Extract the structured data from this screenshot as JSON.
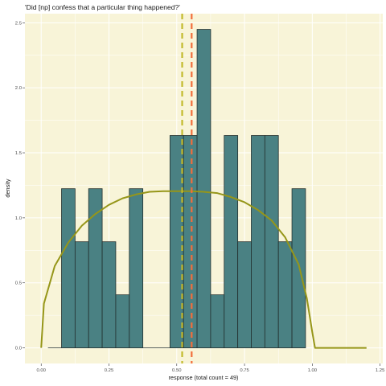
{
  "chart_data": {
    "type": "bar",
    "title": "'Did [np] confess that a particular thing happened?'",
    "xlabel": "response (total count = 49)",
    "ylabel": "density",
    "xlim": [
      -0.06,
      1.26
    ],
    "ylim": [
      -0.12,
      2.57
    ],
    "xticks": [
      0.0,
      0.25,
      0.5,
      0.75,
      1.0,
      1.25
    ],
    "xtick_labels": [
      "0.00",
      "0.25",
      "0.50",
      "0.75",
      "1.00",
      "1.25"
    ],
    "yticks": [
      0.0,
      0.5,
      1.0,
      1.5,
      2.0,
      2.5
    ],
    "ytick_labels": [
      "0.0",
      "0.5",
      "1.0",
      "1.5",
      "2.0",
      "2.5"
    ],
    "grid": true,
    "histogram": {
      "bin_width": 0.05,
      "bins": [
        {
          "x0": 0.075,
          "density": 1.224
        },
        {
          "x0": 0.125,
          "density": 0.816
        },
        {
          "x0": 0.175,
          "density": 1.224
        },
        {
          "x0": 0.225,
          "density": 0.816
        },
        {
          "x0": 0.275,
          "density": 0.408
        },
        {
          "x0": 0.325,
          "density": 1.224
        },
        {
          "x0": 0.375,
          "density": 0.0
        },
        {
          "x0": 0.425,
          "density": 0.0
        },
        {
          "x0": 0.475,
          "density": 1.633
        },
        {
          "x0": 0.525,
          "density": 1.633
        },
        {
          "x0": 0.575,
          "density": 2.449
        },
        {
          "x0": 0.625,
          "density": 0.408
        },
        {
          "x0": 0.675,
          "density": 1.633
        },
        {
          "x0": 0.725,
          "density": 0.816
        },
        {
          "x0": 0.775,
          "density": 1.633
        },
        {
          "x0": 0.825,
          "density": 1.633
        },
        {
          "x0": 0.875,
          "density": 0.816
        },
        {
          "x0": 0.925,
          "density": 1.224
        }
      ],
      "zero_segments": [
        [
          0.025,
          0.075
        ],
        [
          0.375,
          0.475
        ]
      ]
    },
    "density_curve": {
      "x": [
        0.0,
        0.01,
        0.05,
        0.1,
        0.15,
        0.2,
        0.25,
        0.3,
        0.35,
        0.4,
        0.45,
        0.5,
        0.55,
        0.6,
        0.65,
        0.7,
        0.75,
        0.8,
        0.85,
        0.9,
        0.95,
        0.98,
        1.0,
        1.01,
        1.2
      ],
      "y": [
        0.0,
        0.34,
        0.63,
        0.81,
        0.94,
        1.03,
        1.1,
        1.15,
        1.18,
        1.2,
        1.205,
        1.205,
        1.205,
        1.2,
        1.19,
        1.16,
        1.12,
        1.06,
        0.98,
        0.85,
        0.64,
        0.38,
        0.12,
        0.0,
        0.0
      ]
    },
    "vlines": [
      {
        "x": 0.52,
        "color": "#c2ba2c"
      },
      {
        "x": 0.555,
        "color": "#f36e3b"
      }
    ],
    "colors": {
      "panel_background": "#f8f4d8",
      "grid": "#ffffff",
      "bar_fill": "#4a8183",
      "bar_edge": "#23302f",
      "curve": "#969619"
    }
  }
}
